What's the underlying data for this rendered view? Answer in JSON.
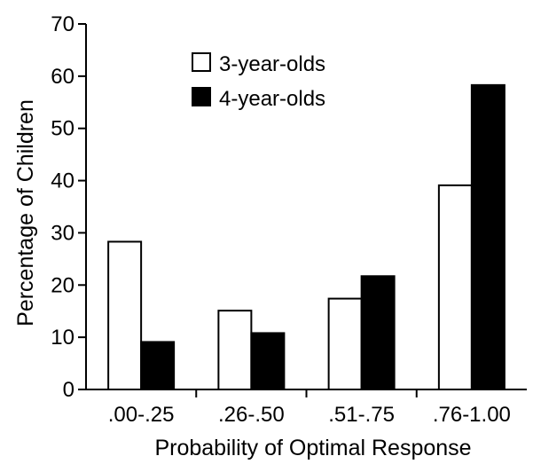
{
  "chart_data": {
    "type": "bar",
    "categories": [
      ".00-.25",
      ".26-.50",
      ".51-.75",
      ".76-1.00"
    ],
    "series": [
      {
        "name": "3-year-olds",
        "values": [
          28.3,
          15.1,
          17.4,
          39.1
        ],
        "color": "#ffffff"
      },
      {
        "name": "4-year-olds",
        "values": [
          9.1,
          10.8,
          21.7,
          58.3
        ],
        "color": "#000000"
      }
    ],
    "title": "",
    "xlabel": "Probability of Optimal Response",
    "ylabel": "Percentage of Children",
    "ylim": [
      0,
      70
    ],
    "yticks": [
      "0",
      "10",
      "20",
      "30",
      "40",
      "50",
      "60",
      "70"
    ],
    "grid": false,
    "legend_position": "top-center"
  }
}
